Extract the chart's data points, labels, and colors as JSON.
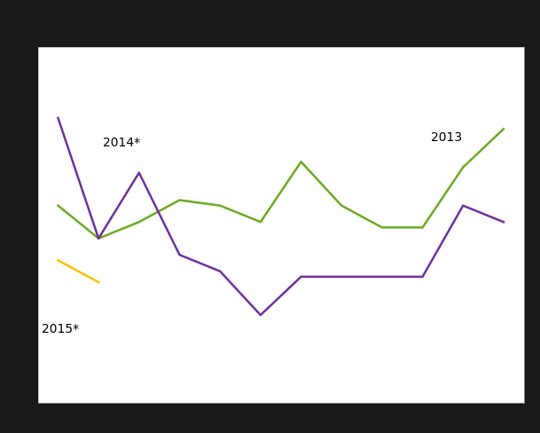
{
  "months": [
    1,
    2,
    3,
    4,
    5,
    6,
    7,
    8,
    9,
    10,
    11,
    12
  ],
  "series_2013": [
    56,
    50,
    53,
    57,
    56,
    53,
    64,
    56,
    52,
    52,
    63,
    70
  ],
  "series_2014": [
    72,
    50,
    62,
    47,
    44,
    36,
    43,
    43,
    43,
    43,
    56,
    53
  ],
  "series_2015": [
    46,
    42,
    null,
    null,
    null,
    null,
    null,
    null,
    null,
    null,
    null,
    null
  ],
  "color_2013": "#6aab20",
  "color_2014": "#7030a0",
  "color_2015": "#ffc000",
  "label_2013": "2013",
  "label_2014": "2014*",
  "label_2015": "2015*",
  "outer_bg": "#1a1a1a",
  "plot_bg": "#ffffff",
  "grid_color": "#cccccc",
  "linewidth": 1.8,
  "annotation_fontsize": 10,
  "ylim": [
    20,
    85
  ],
  "xlim": [
    0.5,
    12.5
  ],
  "figsize": [
    6.09,
    4.89
  ],
  "dpi": 100
}
